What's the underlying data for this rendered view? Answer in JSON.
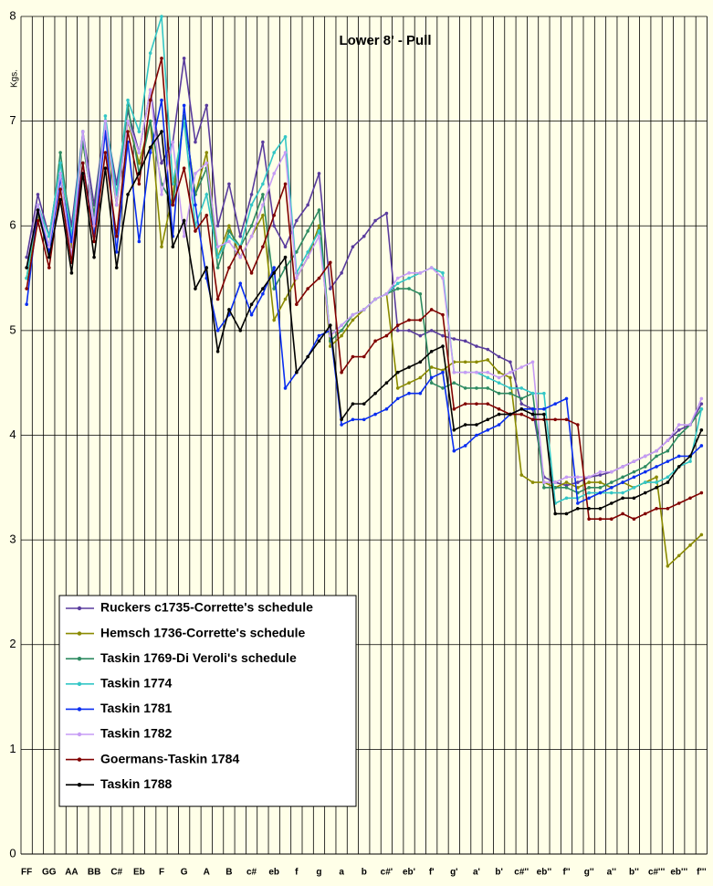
{
  "chart_data": {
    "type": "line",
    "title": "Lower 8' - Pull",
    "y_label": "Kgs.",
    "categories": [
      "FF",
      null,
      "GG",
      null,
      "AA",
      null,
      "BB",
      null,
      "C#",
      null,
      "Eb",
      null,
      "F",
      null,
      "G",
      null,
      "A",
      null,
      "B",
      null,
      "c#",
      null,
      "eb",
      null,
      "f",
      null,
      "g",
      null,
      "a",
      null,
      "b",
      null,
      "c#'",
      null,
      "eb'",
      null,
      "f'",
      null,
      "g'",
      null,
      "a'",
      null,
      "b'",
      null,
      "c#''",
      null,
      "eb''",
      null,
      "f''",
      null,
      "g''",
      null,
      "a''",
      null,
      "b''",
      null,
      "c#'''",
      null,
      "eb'''",
      null,
      "f'''"
    ],
    "ylim": [
      0,
      8
    ],
    "yticks": [
      0,
      1,
      2,
      3,
      4,
      5,
      6,
      7,
      8
    ],
    "grid": true,
    "legend": "lower-left",
    "series": [
      {
        "name": "Ruckers c1735-Corrette's schedule",
        "color": "#5a3c9e",
        "values": [
          5.7,
          6.3,
          5.9,
          6.6,
          6.0,
          6.9,
          6.2,
          7.0,
          6.4,
          7.1,
          6.7,
          7.3,
          6.6,
          6.8,
          7.6,
          6.8,
          7.15,
          6.0,
          6.4,
          5.9,
          6.3,
          6.8,
          6.0,
          5.8,
          6.05,
          6.2,
          6.5,
          5.4,
          5.55,
          5.8,
          5.9,
          6.05,
          6.12,
          5.0,
          5.0,
          4.95,
          5.0,
          4.95,
          4.92,
          4.9,
          4.85,
          4.82,
          4.75,
          4.7,
          4.3,
          4.25,
          3.6,
          3.55,
          3.52,
          3.55,
          3.6,
          3.62,
          3.65,
          3.7,
          3.75,
          3.8,
          3.85,
          3.95,
          4.05,
          4.1,
          4.3
        ]
      },
      {
        "name": "Hemsch 1736-Corrette's schedule",
        "color": "#8a8a00",
        "values": [
          5.5,
          6.1,
          5.8,
          6.5,
          5.8,
          6.8,
          6.1,
          6.9,
          6.2,
          7.0,
          6.6,
          7.0,
          5.8,
          6.3,
          7.05,
          6.3,
          6.7,
          5.7,
          6.0,
          5.7,
          5.9,
          6.1,
          5.1,
          5.3,
          5.5,
          5.7,
          6.0,
          4.85,
          4.95,
          5.1,
          5.2,
          5.3,
          5.35,
          4.45,
          4.5,
          4.55,
          4.65,
          4.62,
          4.7,
          4.7,
          4.7,
          4.72,
          4.6,
          4.55,
          3.62,
          3.55,
          3.55,
          3.5,
          3.55,
          3.5,
          3.55,
          3.55,
          3.5,
          3.55,
          3.5,
          3.55,
          3.6,
          2.75,
          2.85,
          2.95,
          3.05
        ]
      },
      {
        "name": "Taskin 1769-Di Veroli's schedule",
        "color": "#2e8b62",
        "values": [
          5.5,
          6.2,
          5.8,
          6.7,
          5.9,
          6.8,
          6.1,
          7.0,
          6.2,
          7.15,
          6.5,
          7.0,
          6.4,
          6.2,
          7.05,
          6.3,
          6.55,
          5.6,
          5.95,
          5.8,
          6.0,
          6.3,
          5.4,
          5.6,
          5.75,
          5.95,
          6.15,
          4.9,
          5.0,
          5.15,
          5.2,
          5.3,
          5.35,
          5.4,
          5.4,
          5.35,
          4.5,
          4.45,
          4.5,
          4.45,
          4.45,
          4.45,
          4.4,
          4.4,
          4.35,
          4.4,
          3.5,
          3.5,
          3.5,
          3.45,
          3.5,
          3.5,
          3.55,
          3.6,
          3.65,
          3.7,
          3.8,
          3.85,
          4.0,
          4.1,
          4.25
        ]
      },
      {
        "name": "Taskin 1774",
        "color": "#33c6c6",
        "values": [
          5.5,
          6.2,
          5.9,
          6.6,
          5.9,
          6.9,
          6.0,
          7.05,
          6.3,
          7.2,
          6.9,
          7.65,
          8.0,
          6.4,
          7.0,
          6.0,
          6.3,
          5.7,
          5.9,
          5.8,
          6.2,
          6.4,
          6.7,
          6.85,
          5.55,
          5.75,
          5.95,
          4.95,
          5.05,
          5.15,
          5.2,
          5.3,
          5.35,
          5.45,
          5.5,
          5.55,
          5.6,
          5.55,
          4.6,
          4.6,
          4.6,
          4.55,
          4.5,
          4.45,
          4.45,
          4.4,
          4.4,
          3.35,
          3.4,
          3.4,
          3.45,
          3.45,
          3.45,
          3.45,
          3.5,
          3.55,
          3.55,
          3.6,
          3.7,
          3.75,
          4.25
        ]
      },
      {
        "name": "Taskin 1781",
        "color": "#0a2ef0",
        "values": [
          5.25,
          6.15,
          5.75,
          6.45,
          5.85,
          6.6,
          5.9,
          6.9,
          5.75,
          6.8,
          5.85,
          6.7,
          7.2,
          5.9,
          7.15,
          6.2,
          5.5,
          5.0,
          5.15,
          5.45,
          5.15,
          5.35,
          5.6,
          4.45,
          4.6,
          4.75,
          4.95,
          5.0,
          4.1,
          4.15,
          4.15,
          4.2,
          4.25,
          4.35,
          4.4,
          4.4,
          4.55,
          4.6,
          3.85,
          3.9,
          4.0,
          4.05,
          4.1,
          4.2,
          4.25,
          4.25,
          4.25,
          4.3,
          4.35,
          3.35,
          3.4,
          3.45,
          3.5,
          3.55,
          3.6,
          3.65,
          3.7,
          3.75,
          3.8,
          3.8,
          3.9
        ]
      },
      {
        "name": "Taskin 1782",
        "color": "#c69cf5",
        "values": [
          5.6,
          6.2,
          5.8,
          6.5,
          5.7,
          6.9,
          6.0,
          7.0,
          6.2,
          7.0,
          6.7,
          7.3,
          6.3,
          6.8,
          5.9,
          6.5,
          6.6,
          5.8,
          5.85,
          5.7,
          5.9,
          6.2,
          6.5,
          6.7,
          5.5,
          5.7,
          5.9,
          4.95,
          5.05,
          5.15,
          5.2,
          5.3,
          5.35,
          5.5,
          5.55,
          5.55,
          5.6,
          5.5,
          4.6,
          4.6,
          4.6,
          4.6,
          4.55,
          4.6,
          4.65,
          4.7,
          3.55,
          3.55,
          3.6,
          3.6,
          3.6,
          3.65,
          3.65,
          3.7,
          3.75,
          3.8,
          3.85,
          3.95,
          4.1,
          4.1,
          4.35
        ]
      },
      {
        "name": "Goermans-Taskin 1784",
        "color": "#800000",
        "values": [
          5.4,
          6.05,
          5.6,
          6.35,
          5.65,
          6.6,
          5.85,
          6.7,
          5.9,
          6.9,
          6.4,
          7.2,
          7.6,
          6.2,
          6.55,
          5.95,
          6.1,
          5.3,
          5.6,
          5.8,
          5.55,
          5.8,
          6.1,
          6.4,
          5.25,
          5.4,
          5.5,
          5.65,
          4.6,
          4.75,
          4.75,
          4.9,
          4.95,
          5.05,
          5.1,
          5.1,
          5.2,
          5.15,
          4.25,
          4.3,
          4.3,
          4.3,
          4.25,
          4.2,
          4.2,
          4.15,
          4.15,
          4.15,
          4.15,
          4.1,
          3.2,
          3.2,
          3.2,
          3.25,
          3.2,
          3.25,
          3.3,
          3.3,
          3.35,
          3.4,
          3.45
        ]
      },
      {
        "name": "Taskin 1788",
        "color": "#000000",
        "values": [
          5.6,
          6.15,
          5.7,
          6.25,
          5.55,
          6.5,
          5.7,
          6.55,
          5.6,
          6.3,
          6.5,
          6.75,
          6.9,
          5.8,
          6.05,
          5.4,
          5.6,
          4.8,
          5.2,
          5.0,
          5.25,
          5.4,
          5.55,
          5.7,
          4.6,
          4.75,
          4.9,
          5.05,
          4.15,
          4.3,
          4.3,
          4.4,
          4.5,
          4.6,
          4.65,
          4.7,
          4.8,
          4.85,
          4.05,
          4.1,
          4.1,
          4.15,
          4.2,
          4.2,
          4.25,
          4.2,
          4.2,
          3.25,
          3.25,
          3.3,
          3.3,
          3.3,
          3.35,
          3.4,
          3.4,
          3.45,
          3.5,
          3.55,
          3.7,
          3.8,
          4.05
        ]
      }
    ]
  }
}
